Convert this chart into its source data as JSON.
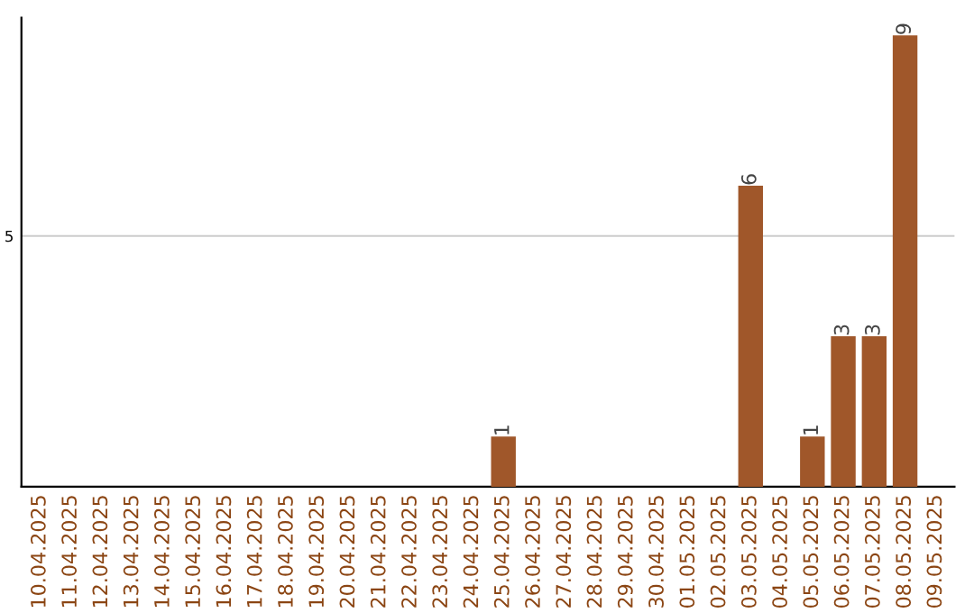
{
  "chart_data": {
    "type": "bar",
    "categories": [
      "10.04.2025",
      "11.04.2025",
      "12.04.2025",
      "13.04.2025",
      "14.04.2025",
      "15.04.2025",
      "16.04.2025",
      "17.04.2025",
      "18.04.2025",
      "19.04.2025",
      "20.04.2025",
      "21.04.2025",
      "22.04.2025",
      "23.04.2025",
      "24.04.2025",
      "25.04.2025",
      "26.04.2025",
      "27.04.2025",
      "28.04.2025",
      "29.04.2025",
      "30.04.2025",
      "01.05.2025",
      "02.05.2025",
      "03.05.2025",
      "04.05.2025",
      "05.05.2025",
      "06.05.2025",
      "07.05.2025",
      "08.05.2025",
      "09.05.2025"
    ],
    "values": [
      null,
      null,
      null,
      null,
      null,
      null,
      null,
      null,
      null,
      null,
      null,
      null,
      null,
      null,
      null,
      1,
      null,
      null,
      null,
      null,
      null,
      null,
      null,
      6,
      null,
      1,
      3,
      3,
      9,
      null
    ],
    "value_labels": [
      null,
      null,
      null,
      null,
      null,
      null,
      null,
      null,
      null,
      null,
      null,
      null,
      null,
      null,
      null,
      "1",
      null,
      null,
      null,
      null,
      null,
      null,
      null,
      "6",
      null,
      "1",
      "3",
      "3",
      "9",
      null
    ],
    "color": "#a0572a",
    "ylim": [
      0,
      9.35
    ],
    "yticks": [
      5
    ],
    "grid": "y"
  }
}
